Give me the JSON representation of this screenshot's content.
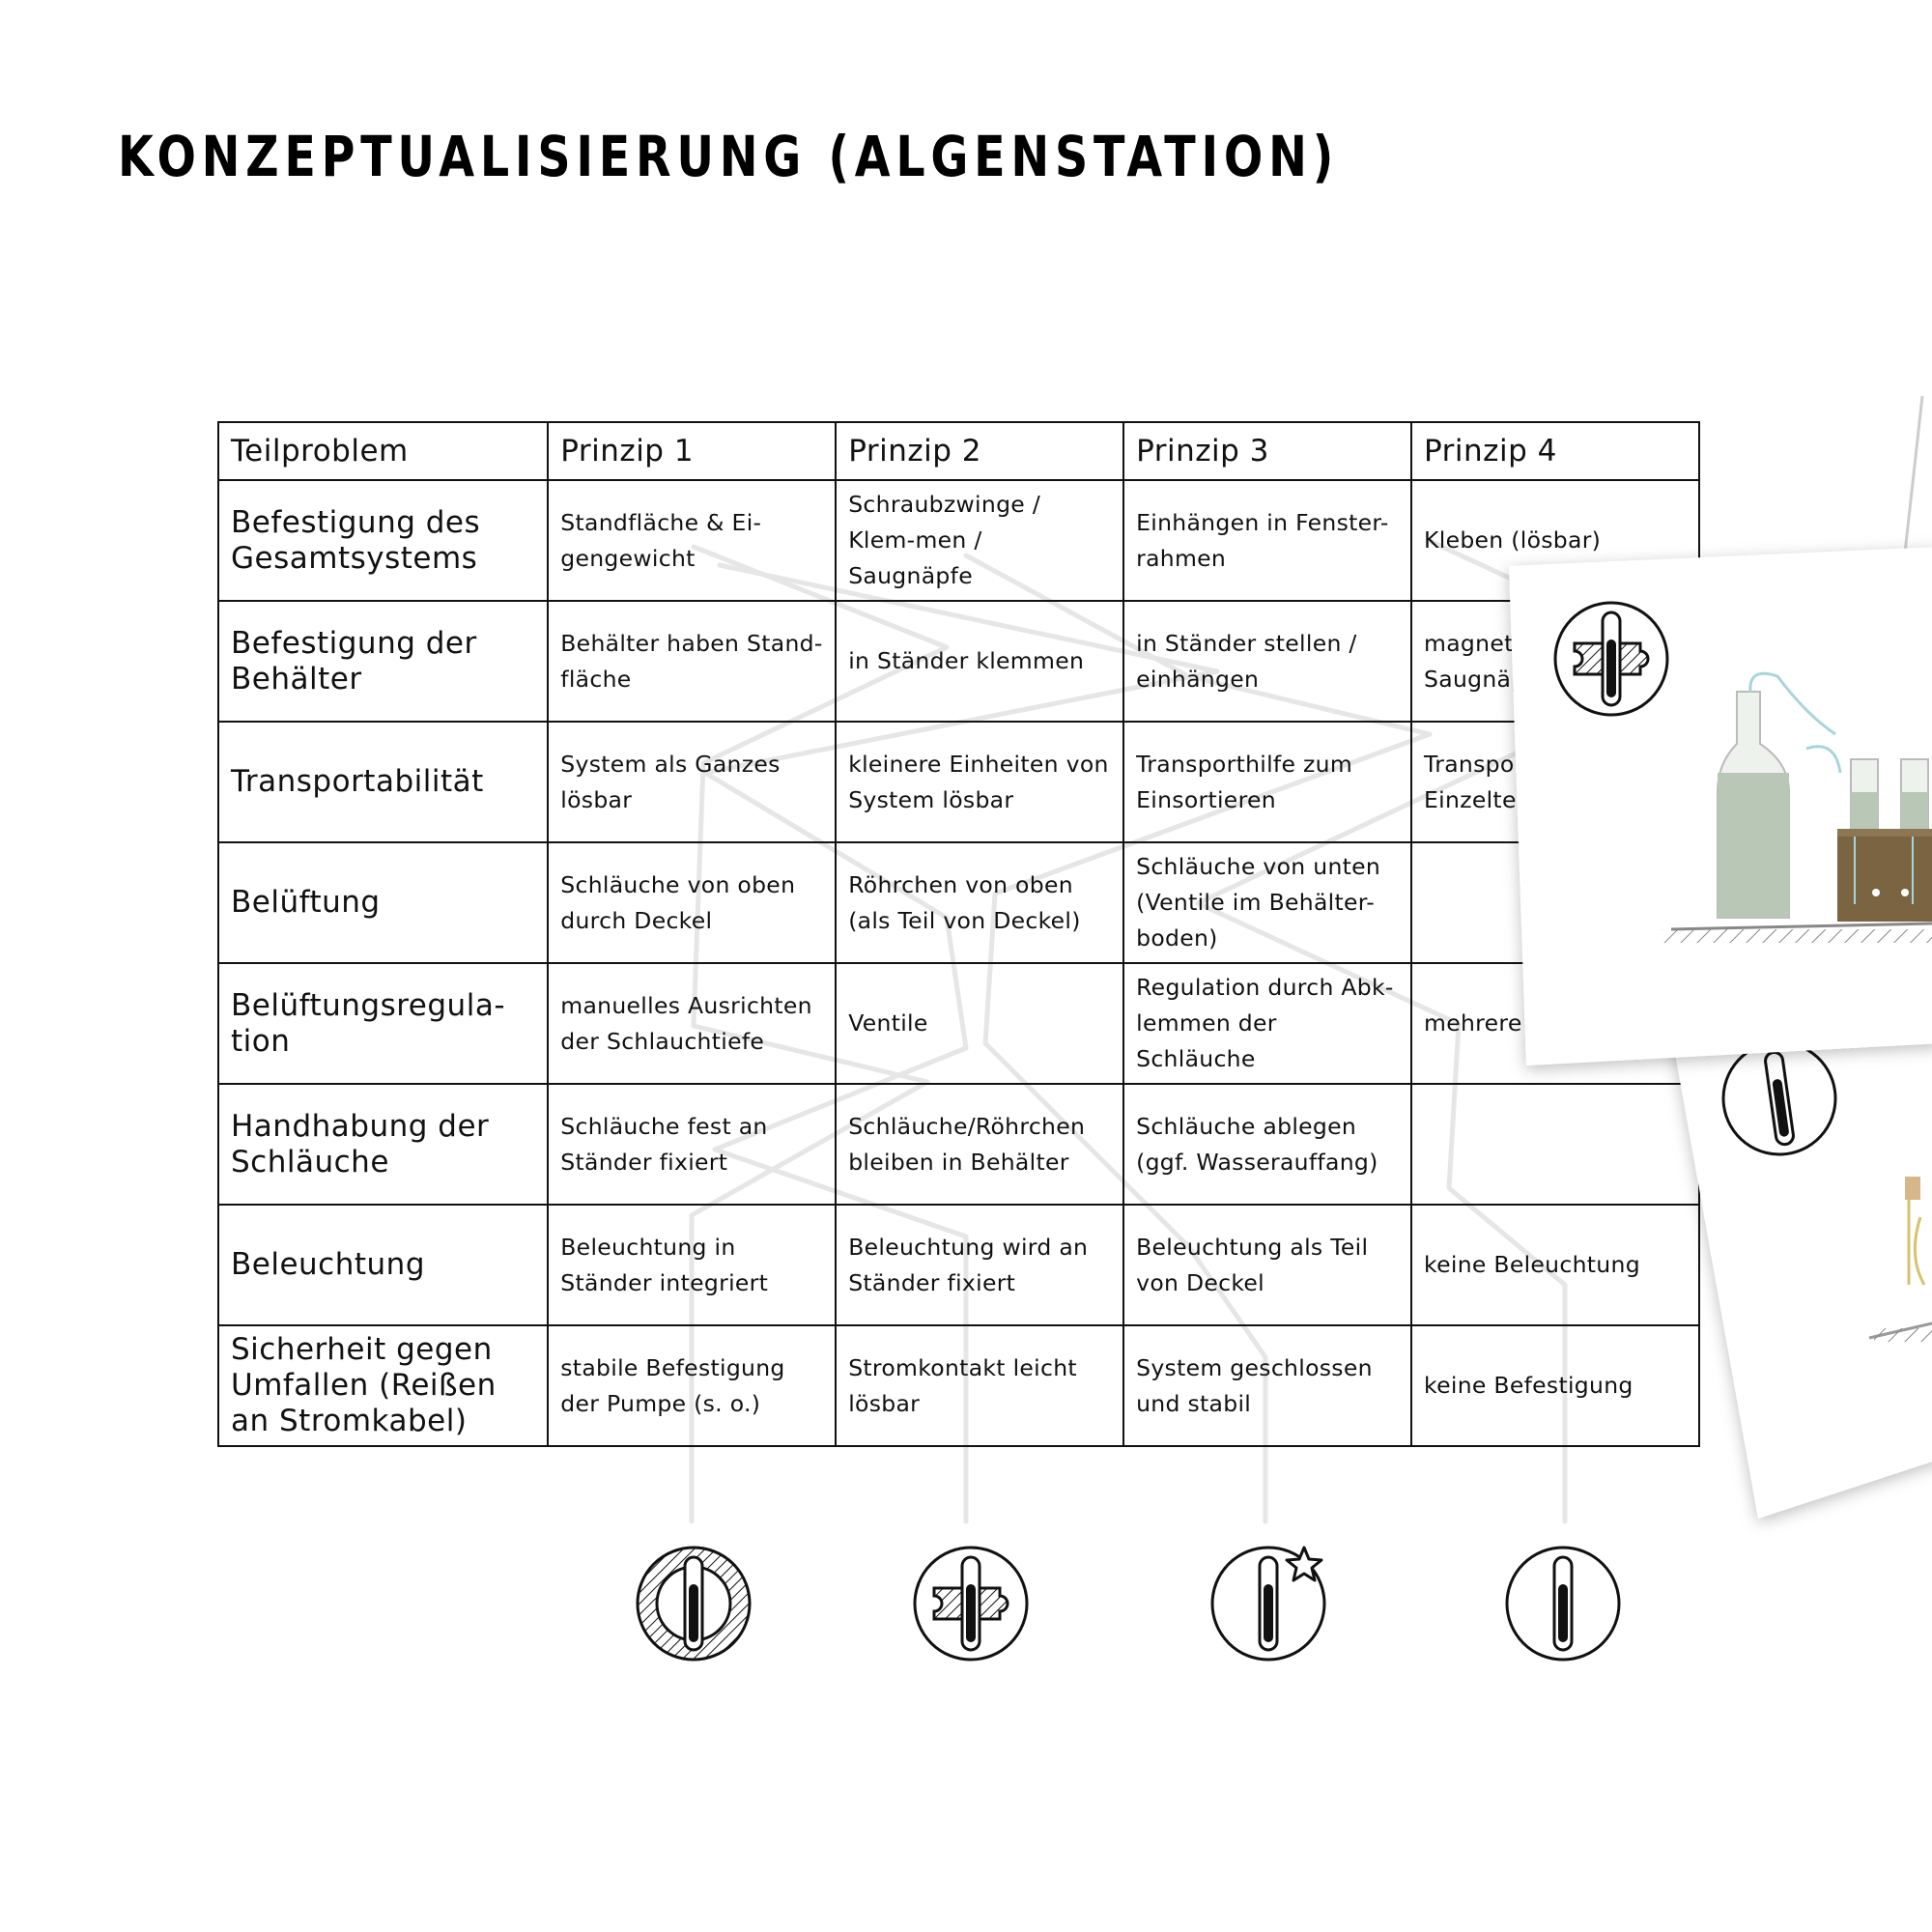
{
  "title": "Konzeptualisierung (Algenstation)",
  "table": {
    "headers": [
      "Teilproblem",
      "Prinzip 1",
      "Prinzip 2",
      "Prinzip 3",
      "Prinzip 4"
    ],
    "rows": [
      {
        "label": "Befestigung des Gesamtsystems",
        "cells": [
          "Standfläche & Ei-gengewicht",
          "Schraubzwinge / Klem-men / Saugnäpfe",
          "Einhängen in Fenster-rahmen",
          "Kleben (lösbar)"
        ]
      },
      {
        "label": "Befestigung der Behälter",
        "cells": [
          "Behälter haben Stand-fläche",
          "in Ständer klemmen",
          "in Ständer stellen / einhängen",
          "magnetisch / Saugnäpfe"
        ]
      },
      {
        "label": "Transportabilität",
        "cells": [
          "System als Ganzes lösbar",
          "kleinere Einheiten von System lösbar",
          "Transporthilfe zum Einsortieren",
          "Transport in Einzelteilen"
        ]
      },
      {
        "label": "Belüftung",
        "cells": [
          "Schläuche von oben durch Deckel",
          "Röhrchen von oben (als Teil von Deckel)",
          "Schläuche von unten (Ventile im Behälter-boden)",
          ""
        ]
      },
      {
        "label": "Belüftungsregula-tion",
        "cells": [
          "manuelles Ausrichten der Schlauchtiefe",
          "Ventile",
          "Regulation durch Abk-lemmen der Schläuche",
          "mehrere Aus-gänge"
        ]
      },
      {
        "label": "Handhabung der Schläuche",
        "cells": [
          "Schläuche fest an Ständer fixiert",
          "Schläuche/Röhrchen bleiben in Behälter",
          "Schläuche ablegen (ggf. Wasserauffang)",
          ""
        ]
      },
      {
        "label": "Beleuchtung",
        "cells": [
          "Beleuchtung in Ständer integriert",
          "Beleuchtung wird an Ständer fixiert",
          "Beleuchtung als Teil von Deckel",
          "keine Beleuchtung"
        ]
      },
      {
        "label": "Sicherheit gegen Umfallen (Reißen an Stromkabel)",
        "cells": [
          "stabile Befestigung der Pumpe (s. o.)",
          "Stromkontakt leicht lösbar",
          "System geschlossen und stabil",
          "keine Befestigung"
        ]
      }
    ]
  },
  "concept_icons": [
    "hatched-ring-tube-icon",
    "puzzle-tube-icon",
    "star-tube-icon",
    "plain-tube-icon"
  ],
  "card_icons": [
    "puzzle-tube-icon",
    "plain-tube-icon"
  ],
  "colors": {
    "ink": "#111111",
    "path_gray": "#e6e6e6",
    "bottle_green": "#b9c7b7",
    "wood_brown": "#7a6442",
    "tube_blue": "#a9d4dc"
  }
}
